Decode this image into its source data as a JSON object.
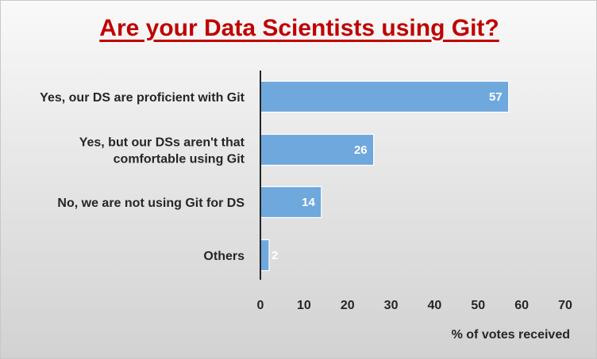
{
  "chart_data": {
    "type": "bar",
    "orientation": "horizontal",
    "title": "Are your Data Scientists using Git?",
    "xlabel": "% of votes received",
    "ylabel": "",
    "categories": [
      [
        "Yes, our DS are proficient with Git"
      ],
      [
        "Yes, but our DSs aren't that",
        "comfortable using Git"
      ],
      [
        "No, we are not using Git for DS"
      ],
      [
        "Others"
      ]
    ],
    "values": [
      57,
      26,
      14,
      2
    ],
    "data_labels": [
      "57",
      "26",
      "14",
      "2"
    ],
    "xlim": [
      0,
      70
    ],
    "xticks": [
      "0",
      "10",
      "20",
      "30",
      "40",
      "50",
      "60",
      "70"
    ],
    "grid": false,
    "legend": "none",
    "colors": {
      "bar": "#6fa8dc",
      "title": "#c00000",
      "axis": "#262626"
    }
  }
}
